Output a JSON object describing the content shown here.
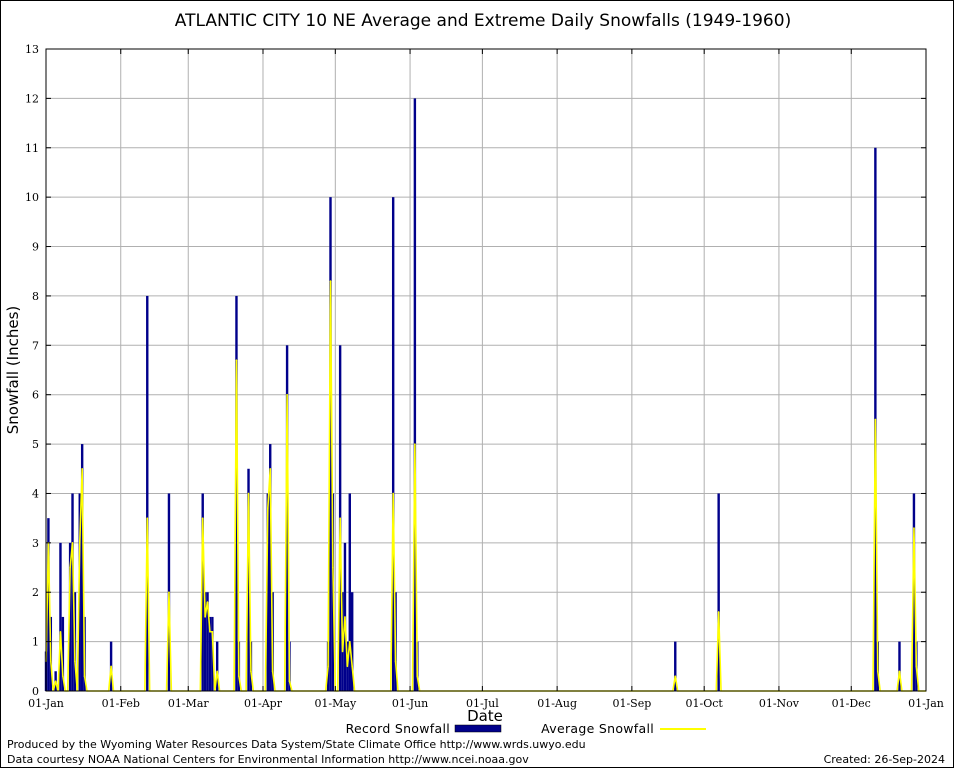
{
  "chart_data": {
    "type": "bar",
    "title": "ATLANTIC CITY 10 NE Average and Extreme Daily Snowfalls (1949-1960)",
    "xlabel": "Date",
    "ylabel": "Snowfall (Inches)",
    "ylim": [
      0,
      13
    ],
    "xlim_day_of_year": [
      1,
      366
    ],
    "y_ticks": [
      "0",
      "1",
      "2",
      "3",
      "4",
      "5",
      "6",
      "7",
      "8",
      "9",
      "10",
      "11",
      "12",
      "13"
    ],
    "x_ticks": [
      "01-Jan",
      "01-Feb",
      "01-Mar",
      "01-Apr",
      "01-May",
      "01-Jun",
      "01-Jul",
      "01-Aug",
      "01-Sep",
      "01-Oct",
      "01-Nov",
      "01-Dec",
      "01-Jan"
    ],
    "x_tick_days": [
      1,
      32,
      60,
      91,
      121,
      152,
      182,
      213,
      244,
      274,
      305,
      335,
      366
    ],
    "grid": true,
    "legend_placement": "bottom",
    "colors": {
      "record": "#00008b",
      "average": "#ffff00",
      "grid": "#b0b0b0"
    },
    "series": [
      {
        "name": "Record Snowfall",
        "style": "bar",
        "points": [
          [
            1,
            0.8
          ],
          [
            2,
            3.5
          ],
          [
            3,
            1.5
          ],
          [
            5,
            0.4
          ],
          [
            7,
            3.0
          ],
          [
            8,
            1.5
          ],
          [
            11,
            3.0
          ],
          [
            12,
            4.0
          ],
          [
            13,
            2.0
          ],
          [
            15,
            4.0
          ],
          [
            16,
            5.0
          ],
          [
            17,
            1.5
          ],
          [
            28,
            1.0
          ],
          [
            43,
            8.0
          ],
          [
            52,
            4.0
          ],
          [
            66,
            4.0
          ],
          [
            67,
            2.0
          ],
          [
            68,
            2.0
          ],
          [
            69,
            1.5
          ],
          [
            70,
            1.5
          ],
          [
            72,
            1.0
          ],
          [
            80,
            8.0
          ],
          [
            81,
            1.0
          ],
          [
            85,
            4.5
          ],
          [
            86,
            1.0
          ],
          [
            93,
            4.0
          ],
          [
            94,
            5.0
          ],
          [
            95,
            2.0
          ],
          [
            101,
            7.0
          ],
          [
            102,
            1.0
          ],
          [
            118,
            1.0
          ],
          [
            119,
            10.0
          ],
          [
            120,
            4.0
          ],
          [
            123,
            7.0
          ],
          [
            124,
            2.0
          ],
          [
            125,
            3.0
          ],
          [
            126,
            1.0
          ],
          [
            127,
            4.0
          ],
          [
            128,
            2.0
          ],
          [
            145,
            10.0
          ],
          [
            146,
            2.0
          ],
          [
            154,
            12.0
          ],
          [
            155,
            1.0
          ],
          [
            262,
            1.0
          ],
          [
            280,
            4.0
          ],
          [
            345,
            11.0
          ],
          [
            346,
            1.0
          ],
          [
            355,
            1.0
          ],
          [
            361,
            4.0
          ],
          [
            362,
            1.0
          ]
        ]
      },
      {
        "name": "Average Snowfall",
        "style": "line",
        "points": [
          [
            1,
            0.6
          ],
          [
            2,
            3.0
          ],
          [
            3,
            0.6
          ],
          [
            5,
            0.2
          ],
          [
            7,
            1.2
          ],
          [
            8,
            0.3
          ],
          [
            11,
            2.5
          ],
          [
            12,
            3.0
          ],
          [
            13,
            0.6
          ],
          [
            15,
            3.0
          ],
          [
            16,
            4.5
          ],
          [
            17,
            0.3
          ],
          [
            28,
            0.5
          ],
          [
            43,
            3.5
          ],
          [
            52,
            2.0
          ],
          [
            66,
            3.5
          ],
          [
            67,
            1.5
          ],
          [
            68,
            1.8
          ],
          [
            69,
            1.2
          ],
          [
            70,
            1.2
          ],
          [
            72,
            0.4
          ],
          [
            80,
            6.7
          ],
          [
            81,
            0.3
          ],
          [
            85,
            4.0
          ],
          [
            86,
            0.4
          ],
          [
            93,
            3.7
          ],
          [
            94,
            4.5
          ],
          [
            95,
            0.4
          ],
          [
            101,
            6.0
          ],
          [
            102,
            0.2
          ],
          [
            118,
            0.5
          ],
          [
            119,
            8.3
          ],
          [
            120,
            2.5
          ],
          [
            123,
            3.5
          ],
          [
            124,
            0.8
          ],
          [
            125,
            1.5
          ],
          [
            126,
            0.5
          ],
          [
            127,
            1.0
          ],
          [
            128,
            0.5
          ],
          [
            145,
            4.0
          ],
          [
            146,
            0.6
          ],
          [
            154,
            5.0
          ],
          [
            155,
            0.3
          ],
          [
            262,
            0.3
          ],
          [
            280,
            1.6
          ],
          [
            345,
            5.5
          ],
          [
            346,
            0.4
          ],
          [
            355,
            0.4
          ],
          [
            361,
            3.3
          ],
          [
            362,
            0.5
          ]
        ]
      }
    ]
  },
  "footer": {
    "produced_by": "Produced by the Wyoming Water Resources Data System/State Climate Office http://www.wrds.uwyo.edu",
    "courtesy": "Data courtesy NOAA National Centers for Environmental Information http://www.ncei.noaa.gov",
    "created": "Created:  26-Sep-2024"
  }
}
